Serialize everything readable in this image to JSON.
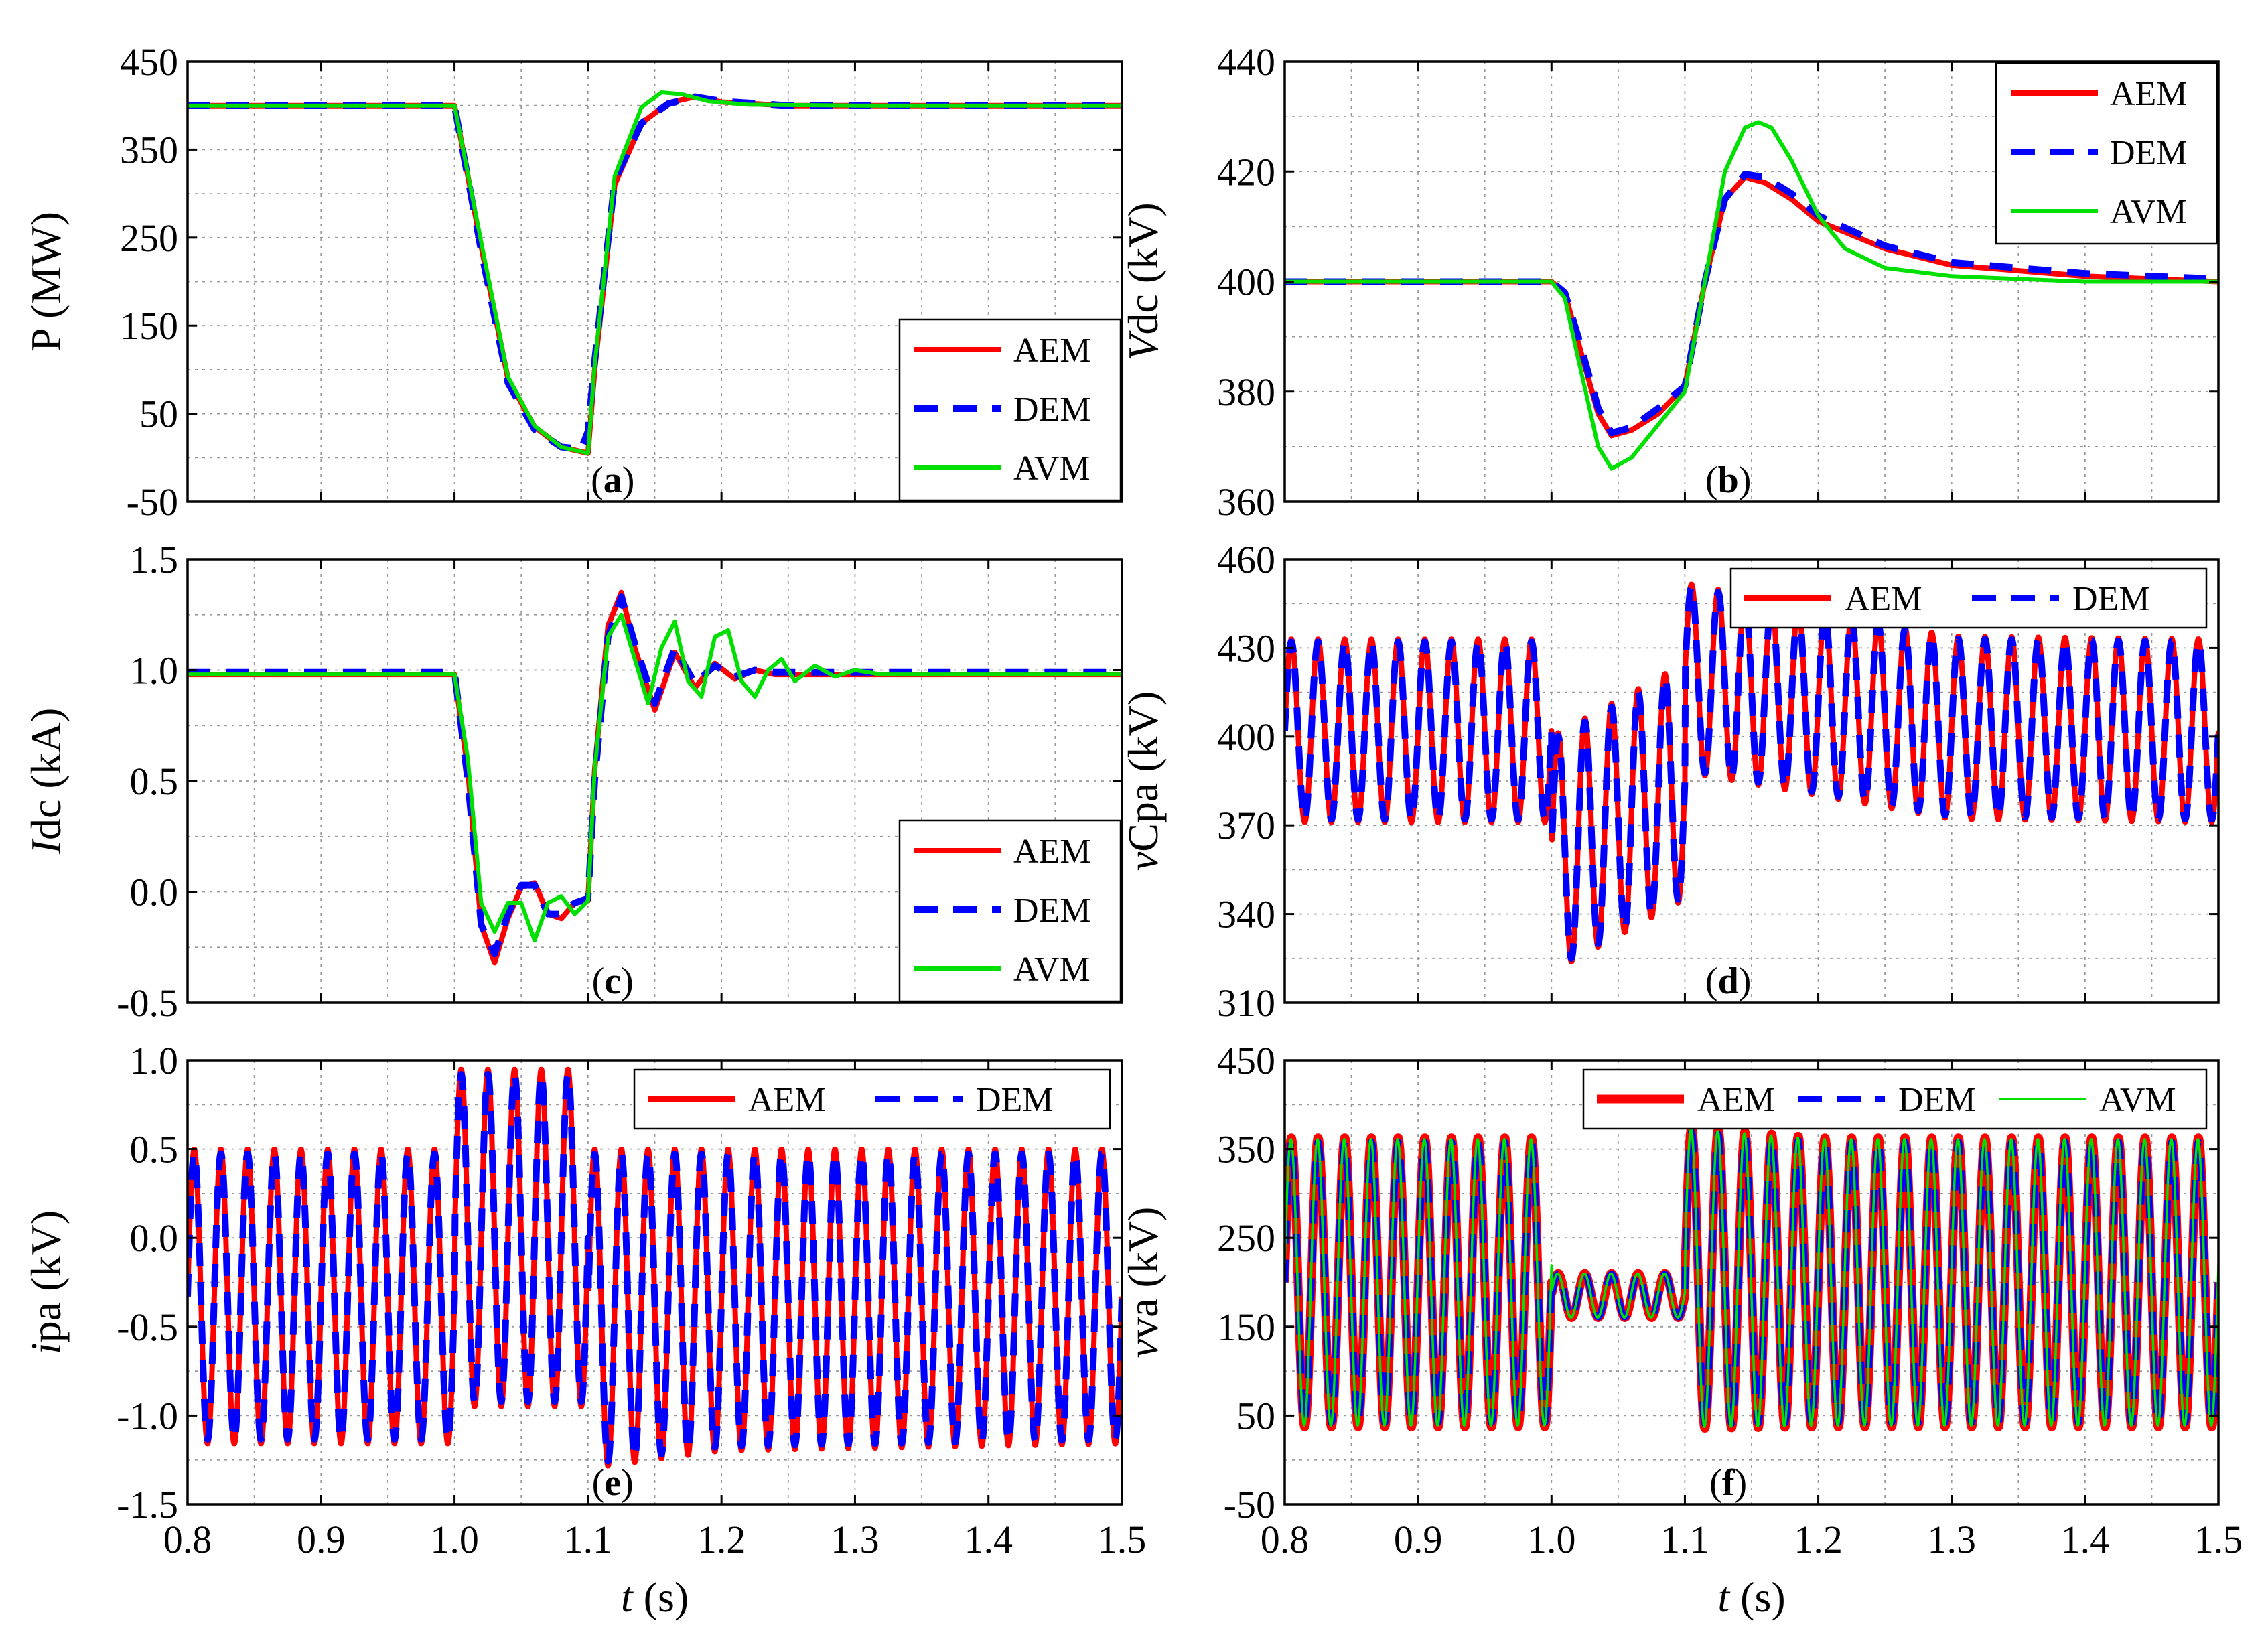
{
  "chart_data": [
    {
      "id": "a",
      "type": "line",
      "tag": "a",
      "xlim": [
        0.8,
        1.5
      ],
      "ylim": [
        -50,
        450
      ],
      "xticks": [
        0.8,
        0.9,
        1.0,
        1.1,
        1.2,
        1.3,
        1.4,
        1.5
      ],
      "xtick_labels": [
        "0.8",
        "0.9",
        "1.0",
        "1.1",
        "1.2",
        "1.3",
        "1.4",
        "1.5"
      ],
      "yticks": [
        -50,
        50,
        150,
        250,
        350,
        450
      ],
      "ytick_labels": [
        "-50",
        "50",
        "150",
        "250",
        "350",
        "450"
      ],
      "show_xtick_labels": false,
      "ylabel": {
        "italic": "",
        "text": "P (MW)"
      },
      "legend": {
        "placement": "bottom-right",
        "layout": "vertical",
        "items": [
          {
            "name": "AEM",
            "style": "red-solid"
          },
          {
            "name": "DEM",
            "style": "blue-dash"
          },
          {
            "name": "AVM",
            "style": "green-solid"
          }
        ]
      },
      "series": [
        {
          "name": "AEM",
          "style": "red-solid",
          "x": [
            0.8,
            1.0,
            1.02,
            1.04,
            1.06,
            1.08,
            1.1,
            1.105,
            1.12,
            1.14,
            1.16,
            1.18,
            1.2,
            1.25,
            1.5
          ],
          "y": [
            400,
            400,
            240,
            90,
            35,
            12,
            5,
            100,
            310,
            380,
            403,
            410,
            404,
            400,
            400
          ]
        },
        {
          "name": "DEM",
          "style": "blue-dash",
          "x": [
            0.8,
            1.0,
            1.02,
            1.04,
            1.06,
            1.08,
            1.095,
            1.1,
            1.105,
            1.12,
            1.14,
            1.16,
            1.18,
            1.2,
            1.25,
            1.5
          ],
          "y": [
            400,
            400,
            235,
            85,
            32,
            12,
            10,
            30,
            110,
            315,
            380,
            402,
            410,
            405,
            400,
            400
          ]
        },
        {
          "name": "AVM",
          "style": "green-solid",
          "x": [
            0.8,
            1.0,
            1.02,
            1.04,
            1.06,
            1.08,
            1.1,
            1.105,
            1.12,
            1.14,
            1.155,
            1.17,
            1.19,
            1.22,
            1.3,
            1.5
          ],
          "y": [
            400,
            400,
            245,
            92,
            36,
            12,
            5,
            105,
            320,
            398,
            415,
            413,
            405,
            401,
            400,
            400
          ]
        }
      ]
    },
    {
      "id": "b",
      "type": "line",
      "tag": "b",
      "xlim": [
        0.8,
        1.5
      ],
      "ylim": [
        360,
        440
      ],
      "xticks": [
        0.8,
        0.9,
        1.0,
        1.1,
        1.2,
        1.3,
        1.4,
        1.5
      ],
      "xtick_labels": [
        "0.8",
        "0.9",
        "1.0",
        "1.1",
        "1.2",
        "1.3",
        "1.4",
        "1.5"
      ],
      "yticks": [
        360,
        380,
        400,
        420,
        440
      ],
      "ytick_labels": [
        "360",
        "380",
        "400",
        "420",
        "440"
      ],
      "show_xtick_labels": false,
      "ylabel": {
        "italic": "V",
        "text": "dc (kV)"
      },
      "legend": {
        "placement": "top-right",
        "layout": "vertical",
        "items": [
          {
            "name": "AEM",
            "style": "red-solid"
          },
          {
            "name": "DEM",
            "style": "blue-dash"
          },
          {
            "name": "AVM",
            "style": "green-solid"
          }
        ]
      },
      "series": [
        {
          "name": "AEM",
          "style": "red-solid",
          "x": [
            0.8,
            1.0,
            1.01,
            1.02,
            1.035,
            1.045,
            1.06,
            1.08,
            1.1,
            1.115,
            1.13,
            1.145,
            1.16,
            1.18,
            1.2,
            1.25,
            1.3,
            1.4,
            1.5
          ],
          "y": [
            400,
            400,
            398,
            389,
            376,
            372,
            373,
            376,
            381,
            400,
            415,
            419,
            418,
            415,
            411,
            406,
            403,
            401,
            400
          ]
        },
        {
          "name": "DEM",
          "style": "blue-dash",
          "x": [
            0.8,
            1.0,
            1.01,
            1.02,
            1.035,
            1.045,
            1.06,
            1.08,
            1.1,
            1.115,
            1.13,
            1.145,
            1.16,
            1.18,
            1.2,
            1.25,
            1.3,
            1.4,
            1.5
          ],
          "y": [
            400,
            400,
            398,
            390,
            377,
            372.5,
            373.5,
            377,
            381,
            400,
            415,
            419.5,
            419,
            416,
            412,
            406.5,
            403.5,
            401.5,
            400.5
          ]
        },
        {
          "name": "AVM",
          "style": "green-solid",
          "x": [
            0.8,
            1.0,
            1.01,
            1.02,
            1.035,
            1.045,
            1.06,
            1.08,
            1.1,
            1.115,
            1.13,
            1.145,
            1.155,
            1.165,
            1.18,
            1.2,
            1.22,
            1.25,
            1.3,
            1.4,
            1.5
          ],
          "y": [
            400,
            400,
            397,
            386,
            370,
            366,
            368,
            374,
            380,
            400,
            420,
            428,
            429,
            428,
            422,
            412,
            406,
            402.5,
            401,
            400,
            400
          ]
        }
      ]
    },
    {
      "id": "c",
      "type": "line",
      "tag": "c",
      "xlim": [
        0.8,
        1.5
      ],
      "ylim": [
        -0.5,
        1.5
      ],
      "xticks": [
        0.8,
        0.9,
        1.0,
        1.1,
        1.2,
        1.3,
        1.4,
        1.5
      ],
      "xtick_labels": [
        "0.8",
        "0.9",
        "1.0",
        "1.1",
        "1.2",
        "1.3",
        "1.4",
        "1.5"
      ],
      "yticks": [
        -0.5,
        0.0,
        0.5,
        1.0,
        1.5
      ],
      "ytick_labels": [
        "-0.5",
        "0.0",
        "0.5",
        "1.0",
        "1.5"
      ],
      "show_xtick_labels": false,
      "ylabel": {
        "italic": "I",
        "text": "dc (kA)"
      },
      "legend": {
        "placement": "bottom-right",
        "layout": "vertical",
        "items": [
          {
            "name": "AEM",
            "style": "red-solid"
          },
          {
            "name": "DEM",
            "style": "blue-dash"
          },
          {
            "name": "AVM",
            "style": "green-solid"
          }
        ]
      },
      "series": [
        {
          "name": "AEM",
          "style": "red-solid",
          "x": [
            0.8,
            1.0,
            1.01,
            1.02,
            1.03,
            1.04,
            1.05,
            1.06,
            1.07,
            1.08,
            1.09,
            1.1,
            1.105,
            1.115,
            1.125,
            1.135,
            1.15,
            1.165,
            1.18,
            1.195,
            1.21,
            1.225,
            1.24,
            1.5
          ],
          "y": [
            0.98,
            0.98,
            0.55,
            -0.15,
            -0.32,
            -0.12,
            0.02,
            0.04,
            -0.1,
            -0.12,
            -0.05,
            -0.04,
            0.55,
            1.2,
            1.35,
            1.1,
            0.82,
            1.08,
            0.92,
            1.03,
            0.96,
            1.0,
            0.98,
            0.98
          ]
        },
        {
          "name": "DEM",
          "style": "blue-dash",
          "x": [
            0.8,
            1.0,
            1.01,
            1.02,
            1.03,
            1.04,
            1.05,
            1.06,
            1.07,
            1.08,
            1.09,
            1.1,
            1.105,
            1.115,
            1.125,
            1.135,
            1.15,
            1.165,
            1.18,
            1.195,
            1.21,
            1.225,
            1.24,
            1.5
          ],
          "y": [
            0.99,
            0.99,
            0.5,
            -0.15,
            -0.28,
            -0.1,
            0.03,
            0.03,
            -0.1,
            -0.1,
            -0.05,
            -0.03,
            0.5,
            1.15,
            1.33,
            1.12,
            0.85,
            1.1,
            0.94,
            1.02,
            0.97,
            1.0,
            0.99,
            0.99
          ]
        },
        {
          "name": "AVM",
          "style": "green-solid",
          "x": [
            0.8,
            1.0,
            1.01,
            1.02,
            1.03,
            1.04,
            1.05,
            1.06,
            1.07,
            1.08,
            1.09,
            1.1,
            1.105,
            1.115,
            1.125,
            1.135,
            1.145,
            1.155,
            1.165,
            1.175,
            1.185,
            1.195,
            1.205,
            1.215,
            1.225,
            1.235,
            1.245,
            1.255,
            1.27,
            1.285,
            1.3,
            1.32,
            1.5
          ],
          "y": [
            0.98,
            0.98,
            0.6,
            -0.05,
            -0.18,
            -0.05,
            -0.05,
            -0.22,
            -0.05,
            -0.02,
            -0.1,
            -0.04,
            0.55,
            1.15,
            1.25,
            1.05,
            0.85,
            1.1,
            1.22,
            0.95,
            0.88,
            1.15,
            1.18,
            0.95,
            0.88,
            1.0,
            1.05,
            0.95,
            1.02,
            0.97,
            1.0,
            0.98,
            0.98
          ]
        }
      ]
    },
    {
      "id": "d",
      "type": "line",
      "tag": "d",
      "xlim": [
        0.8,
        1.5
      ],
      "ylim": [
        310,
        460
      ],
      "xticks": [
        0.8,
        0.9,
        1.0,
        1.1,
        1.2,
        1.3,
        1.4,
        1.5
      ],
      "xtick_labels": [
        "0.8",
        "0.9",
        "1.0",
        "1.1",
        "1.2",
        "1.3",
        "1.4",
        "1.5"
      ],
      "yticks": [
        310,
        340,
        370,
        400,
        430,
        460
      ],
      "ytick_labels": [
        "310",
        "340",
        "370",
        "400",
        "430",
        "460"
      ],
      "show_xtick_labels": false,
      "ylabel": {
        "italic": "v",
        "text": "Cpa (kV)"
      },
      "legend": {
        "placement": "top-right",
        "layout": "horizontal",
        "items": [
          {
            "name": "AEM",
            "style": "red-solid"
          },
          {
            "name": "DEM",
            "style": "blue-dash"
          }
        ]
      },
      "oscillation": {
        "frequency_hz": 50,
        "segments": [
          {
            "t0": 0.8,
            "t1": 1.0,
            "center_start": 402,
            "center_end": 402,
            "amp_start": 31,
            "amp_end": 31
          },
          {
            "t0": 1.0,
            "t1": 1.1,
            "center_start": 360,
            "center_end": 385,
            "amp_start": 40,
            "amp_end": 40
          },
          {
            "t0": 1.1,
            "t1": 1.3,
            "center_start": 420,
            "center_end": 403,
            "amp_start": 32,
            "amp_end": 31
          },
          {
            "t0": 1.3,
            "t1": 1.5,
            "center_start": 403,
            "center_end": 402,
            "amp_start": 31,
            "amp_end": 31
          }
        ]
      },
      "series": [
        {
          "name": "AEM",
          "style": "red-solid"
        },
        {
          "name": "DEM",
          "style": "blue-dash"
        }
      ]
    },
    {
      "id": "e",
      "type": "line",
      "tag": "e",
      "xlim": [
        0.8,
        1.5
      ],
      "ylim": [
        -1.5,
        1.0
      ],
      "xticks": [
        0.8,
        0.9,
        1.0,
        1.1,
        1.2,
        1.3,
        1.4,
        1.5
      ],
      "xtick_labels": [
        "0.8",
        "0.9",
        "1.0",
        "1.1",
        "1.2",
        "1.3",
        "1.4",
        "1.5"
      ],
      "yticks": [
        -1.5,
        -1.0,
        -0.5,
        0.0,
        0.5,
        1.0
      ],
      "ytick_labels": [
        "-1.5",
        "-1.0",
        "-0.5",
        "0.0",
        "0.5",
        "1.0"
      ],
      "show_xtick_labels": true,
      "xlabel": {
        "italic": "t",
        "text": " (s)"
      },
      "ylabel": {
        "italic": "i",
        "text": "pa (kV)"
      },
      "legend": {
        "placement": "top-right",
        "layout": "horizontal",
        "items": [
          {
            "name": "AEM",
            "style": "red-solid"
          },
          {
            "name": "DEM",
            "style": "blue-dash"
          }
        ]
      },
      "oscillation": {
        "frequency_hz": 50,
        "segments": [
          {
            "t0": 0.8,
            "t1": 1.0,
            "center_start": -0.33,
            "center_end": -0.33,
            "amp_start": 0.83,
            "amp_end": 0.83
          },
          {
            "t0": 1.0,
            "t1": 1.1,
            "center_start": 0.0,
            "center_end": 0.0,
            "amp_start": 0.95,
            "amp_end": 0.95
          },
          {
            "t0": 1.1,
            "t1": 1.2,
            "center_start": -0.4,
            "center_end": -0.35,
            "amp_start": 0.9,
            "amp_end": 0.85
          },
          {
            "t0": 1.2,
            "t1": 1.5,
            "center_start": -0.35,
            "center_end": -0.33,
            "amp_start": 0.85,
            "amp_end": 0.83
          }
        ]
      },
      "series": [
        {
          "name": "AEM",
          "style": "red-solid"
        },
        {
          "name": "DEM",
          "style": "blue-dash"
        }
      ]
    },
    {
      "id": "f",
      "type": "line",
      "tag": "f",
      "xlim": [
        0.8,
        1.5
      ],
      "ylim": [
        -50,
        450
      ],
      "xticks": [
        0.8,
        0.9,
        1.0,
        1.1,
        1.2,
        1.3,
        1.4,
        1.5
      ],
      "xtick_labels": [
        "0.8",
        "0.9",
        "1.0",
        "1.1",
        "1.2",
        "1.3",
        "1.4",
        "1.5"
      ],
      "yticks": [
        -50,
        50,
        150,
        250,
        350,
        450
      ],
      "ytick_labels": [
        "-50",
        "50",
        "150",
        "250",
        "350",
        "450"
      ],
      "show_xtick_labels": true,
      "xlabel": {
        "italic": "t",
        "text": " (s)"
      },
      "ylabel": {
        "italic": "v",
        "text": "va (kV)"
      },
      "legend": {
        "placement": "top",
        "layout": "horizontal",
        "items": [
          {
            "name": "AEM",
            "style": "red-thick"
          },
          {
            "name": "DEM",
            "style": "blue-dash"
          },
          {
            "name": "AVM",
            "style": "green-thin"
          }
        ]
      },
      "oscillation": {
        "frequency_hz": 50,
        "segments": [
          {
            "t0": 0.8,
            "t1": 1.0,
            "center_start": 200,
            "center_end": 200,
            "amp_start": 163,
            "amp_end": 163
          },
          {
            "t0": 1.0,
            "t1": 1.1,
            "center_start": 185,
            "center_end": 185,
            "amp_start": 25,
            "amp_end": 25
          },
          {
            "t0": 1.1,
            "t1": 1.2,
            "center_start": 205,
            "center_end": 200,
            "amp_start": 170,
            "amp_end": 163
          },
          {
            "t0": 1.2,
            "t1": 1.5,
            "center_start": 200,
            "center_end": 200,
            "amp_start": 163,
            "amp_end": 163
          }
        ]
      },
      "series": [
        {
          "name": "AEM",
          "style": "red-thick"
        },
        {
          "name": "DEM",
          "style": "blue-dash"
        },
        {
          "name": "AVM",
          "style": "green-thin"
        }
      ]
    }
  ],
  "colors": {
    "AEM": "#ff0000",
    "DEM": "#0000ff",
    "AVM": "#00e000"
  }
}
